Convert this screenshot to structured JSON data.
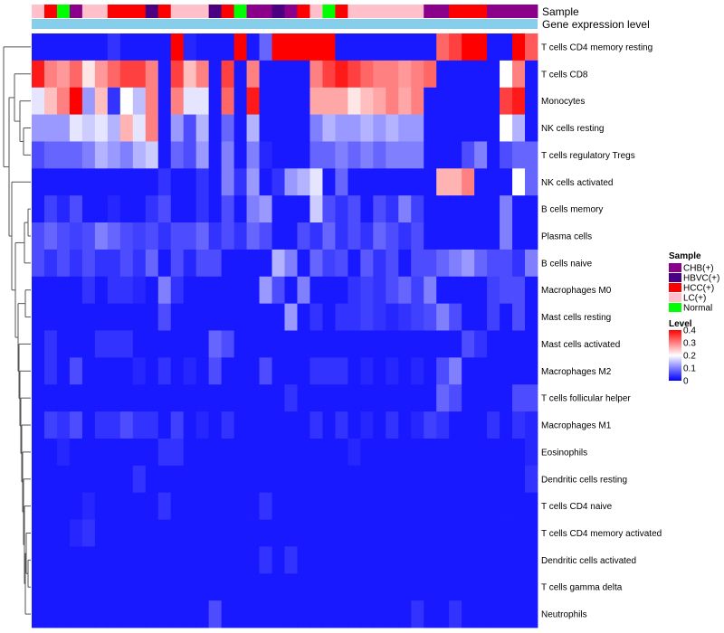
{
  "chart_data": {
    "type": "heatmap",
    "title": "",
    "annotation_tracks": [
      "Sample",
      "Gene expression level"
    ],
    "rows": [
      "T cells CD4 memory resting",
      "T cells CD8",
      "Monocytes",
      "NK cells resting",
      "T cells regulatory  Tregs",
      "NK cells activated",
      "B cells memory",
      "Plasma cells",
      "B cells naive",
      "Macrophages M0",
      "Mast cells resting",
      "Mast cells activated",
      "Macrophages M2",
      "T cells follicular helper",
      "Macrophages M1",
      "Eosinophils",
      "Dendritic cells resting",
      "T cells CD4 naive",
      "T cells CD4 memory activated",
      "Dendritic cells activated",
      "T cells gamma delta",
      "Neutrophils"
    ],
    "sample_groups": [
      "LC",
      "HCC",
      "Normal",
      "CHB",
      "LC",
      "LC",
      "HCC",
      "HCC",
      "HCC",
      "HBVC",
      "HCC",
      "LC",
      "LC",
      "LC",
      "HBVC",
      "HCC",
      "Normal",
      "CHB",
      "CHB",
      "HBVC",
      "CHB",
      "HCC",
      "LC",
      "Normal",
      "HCC",
      "LC",
      "LC",
      "LC",
      "LC",
      "LC",
      "LC",
      "CHB",
      "CHB",
      "HCC",
      "HCC",
      "HCC",
      "CHB",
      "CHB",
      "CHB",
      "CHB"
    ],
    "values": [
      [
        0.02,
        0.02,
        0.02,
        0.02,
        0.02,
        0.02,
        0.04,
        0.02,
        0.02,
        0.02,
        0.02,
        0.4,
        0.03,
        0.02,
        0.02,
        0.02,
        0.4,
        0.02,
        0.08,
        0.4,
        0.4,
        0.4,
        0.4,
        0.4,
        0.02,
        0.02,
        0.02,
        0.02,
        0.02,
        0.02,
        0.02,
        0.02,
        0.32,
        0.35,
        0.4,
        0.4,
        0.02,
        0.02,
        0.4,
        0.33
      ],
      [
        0.38,
        0.3,
        0.28,
        0.32,
        0.22,
        0.28,
        0.32,
        0.35,
        0.35,
        0.3,
        0.02,
        0.35,
        0.25,
        0.3,
        0.02,
        0.35,
        0.02,
        0.3,
        0.02,
        0.02,
        0.02,
        0.02,
        0.3,
        0.35,
        0.38,
        0.35,
        0.32,
        0.3,
        0.3,
        0.28,
        0.3,
        0.32,
        0.02,
        0.02,
        0.02,
        0.02,
        0.02,
        0.2,
        0.3,
        0.02
      ],
      [
        0.18,
        0.25,
        0.3,
        0.4,
        0.12,
        0.25,
        0.04,
        0.2,
        0.15,
        0.3,
        0.02,
        0.3,
        0.18,
        0.18,
        0.02,
        0.32,
        0.02,
        0.38,
        0.02,
        0.02,
        0.02,
        0.02,
        0.27,
        0.27,
        0.27,
        0.22,
        0.25,
        0.27,
        0.3,
        0.27,
        0.3,
        0.02,
        0.02,
        0.02,
        0.02,
        0.02,
        0.02,
        0.35,
        0.38,
        0.02
      ],
      [
        0.12,
        0.12,
        0.12,
        0.18,
        0.16,
        0.18,
        0.14,
        0.26,
        0.18,
        0.3,
        0.02,
        0.12,
        0.06,
        0.14,
        0.02,
        0.08,
        0.02,
        0.14,
        0.02,
        0.02,
        0.02,
        0.02,
        0.1,
        0.14,
        0.12,
        0.12,
        0.14,
        0.12,
        0.14,
        0.12,
        0.12,
        0.02,
        0.02,
        0.02,
        0.02,
        0.02,
        0.02,
        0.2,
        0.14,
        0.02
      ],
      [
        0.06,
        0.08,
        0.08,
        0.08,
        0.1,
        0.14,
        0.12,
        0.1,
        0.14,
        0.16,
        0.02,
        0.08,
        0.06,
        0.12,
        0.02,
        0.1,
        0.02,
        0.1,
        0.03,
        0.02,
        0.02,
        0.02,
        0.08,
        0.08,
        0.1,
        0.08,
        0.1,
        0.08,
        0.1,
        0.1,
        0.1,
        0.02,
        0.02,
        0.02,
        0.06,
        0.1,
        0.02,
        0.06,
        0.08,
        0.08
      ],
      [
        0.02,
        0.02,
        0.02,
        0.02,
        0.02,
        0.02,
        0.02,
        0.02,
        0.02,
        0.02,
        0.04,
        0.02,
        0.02,
        0.04,
        0.02,
        0.1,
        0.04,
        0.12,
        0.02,
        0.04,
        0.12,
        0.14,
        0.18,
        0.02,
        0.08,
        0.02,
        0.02,
        0.02,
        0.02,
        0.02,
        0.02,
        0.02,
        0.26,
        0.26,
        0.3,
        0.02,
        0.02,
        0.02,
        0.2,
        0.08
      ],
      [
        0.02,
        0.05,
        0.03,
        0.06,
        0.02,
        0.02,
        0.03,
        0.02,
        0.02,
        0.04,
        0.06,
        0.02,
        0.02,
        0.04,
        0.02,
        0.06,
        0.02,
        0.1,
        0.12,
        0.02,
        0.02,
        0.02,
        0.16,
        0.06,
        0.04,
        0.06,
        0.02,
        0.06,
        0.04,
        0.1,
        0.05,
        0.02,
        0.02,
        0.02,
        0.02,
        0.02,
        0.02,
        0.1,
        0.02,
        0.02
      ],
      [
        0.06,
        0.08,
        0.06,
        0.05,
        0.06,
        0.1,
        0.08,
        0.06,
        0.05,
        0.06,
        0.04,
        0.06,
        0.06,
        0.08,
        0.04,
        0.06,
        0.04,
        0.08,
        0.06,
        0.02,
        0.02,
        0.06,
        0.04,
        0.08,
        0.04,
        0.06,
        0.04,
        0.08,
        0.06,
        0.04,
        0.06,
        0.02,
        0.02,
        0.02,
        0.02,
        0.02,
        0.02,
        0.1,
        0.02,
        0.02
      ],
      [
        0.06,
        0.04,
        0.06,
        0.04,
        0.06,
        0.04,
        0.04,
        0.06,
        0.04,
        0.08,
        0.02,
        0.06,
        0.03,
        0.06,
        0.06,
        0.02,
        0.02,
        0.02,
        0.02,
        0.14,
        0.1,
        0.02,
        0.08,
        0.05,
        0.06,
        0.02,
        0.07,
        0.04,
        0.06,
        0.02,
        0.06,
        0.06,
        0.08,
        0.1,
        0.12,
        0.08,
        0.06,
        0.06,
        0.04,
        0.1
      ],
      [
        0.02,
        0.02,
        0.02,
        0.02,
        0.04,
        0.02,
        0.04,
        0.04,
        0.03,
        0.02,
        0.1,
        0.04,
        0.02,
        0.02,
        0.02,
        0.02,
        0.02,
        0.02,
        0.12,
        0.06,
        0.02,
        0.1,
        0.02,
        0.02,
        0.02,
        0.04,
        0.05,
        0.04,
        0.06,
        0.08,
        0.05,
        0.1,
        0.02,
        0.02,
        0.02,
        0.02,
        0.05,
        0.06,
        0.06,
        0.02
      ],
      [
        0.02,
        0.02,
        0.02,
        0.02,
        0.02,
        0.02,
        0.02,
        0.02,
        0.02,
        0.02,
        0.06,
        0.02,
        0.02,
        0.02,
        0.02,
        0.02,
        0.02,
        0.02,
        0.02,
        0.02,
        0.12,
        0.02,
        0.04,
        0.02,
        0.04,
        0.04,
        0.05,
        0.04,
        0.03,
        0.04,
        0.05,
        0.06,
        0.1,
        0.06,
        0.02,
        0.02,
        0.05,
        0.02,
        0.06,
        0.02
      ],
      [
        0.02,
        0.04,
        0.02,
        0.02,
        0.02,
        0.04,
        0.04,
        0.04,
        0.02,
        0.02,
        0.02,
        0.02,
        0.02,
        0.02,
        0.08,
        0.06,
        0.02,
        0.02,
        0.02,
        0.02,
        0.02,
        0.02,
        0.02,
        0.02,
        0.02,
        0.02,
        0.02,
        0.02,
        0.02,
        0.02,
        0.02,
        0.02,
        0.02,
        0.02,
        0.06,
        0.04,
        0.02,
        0.02,
        0.02,
        0.02
      ],
      [
        0.02,
        0.04,
        0.02,
        0.06,
        0.02,
        0.02,
        0.02,
        0.02,
        0.03,
        0.02,
        0.04,
        0.02,
        0.03,
        0.02,
        0.06,
        0.02,
        0.02,
        0.02,
        0.06,
        0.02,
        0.02,
        0.02,
        0.04,
        0.04,
        0.04,
        0.02,
        0.03,
        0.02,
        0.03,
        0.02,
        0.03,
        0.02,
        0.06,
        0.1,
        0.02,
        0.02,
        0.02,
        0.02,
        0.02,
        0.02
      ],
      [
        0.02,
        0.02,
        0.02,
        0.02,
        0.02,
        0.02,
        0.02,
        0.02,
        0.02,
        0.02,
        0.02,
        0.02,
        0.02,
        0.02,
        0.02,
        0.02,
        0.02,
        0.02,
        0.02,
        0.02,
        0.04,
        0.02,
        0.02,
        0.02,
        0.02,
        0.02,
        0.02,
        0.02,
        0.02,
        0.02,
        0.02,
        0.02,
        0.08,
        0.06,
        0.02,
        0.02,
        0.02,
        0.02,
        0.06,
        0.06
      ],
      [
        0.02,
        0.05,
        0.04,
        0.06,
        0.02,
        0.04,
        0.04,
        0.06,
        0.04,
        0.04,
        0.02,
        0.05,
        0.02,
        0.03,
        0.02,
        0.04,
        0.02,
        0.02,
        0.02,
        0.02,
        0.02,
        0.02,
        0.04,
        0.02,
        0.04,
        0.02,
        0.03,
        0.02,
        0.04,
        0.02,
        0.03,
        0.05,
        0.04,
        0.02,
        0.02,
        0.02,
        0.04,
        0.02,
        0.04,
        0.03
      ],
      [
        0.02,
        0.02,
        0.03,
        0.02,
        0.02,
        0.02,
        0.02,
        0.02,
        0.02,
        0.02,
        0.04,
        0.04,
        0.02,
        0.02,
        0.02,
        0.02,
        0.02,
        0.02,
        0.02,
        0.02,
        0.02,
        0.02,
        0.02,
        0.02,
        0.02,
        0.03,
        0.02,
        0.02,
        0.02,
        0.02,
        0.02,
        0.02,
        0.02,
        0.02,
        0.02,
        0.02,
        0.02,
        0.02,
        0.02,
        0.03
      ],
      [
        0.02,
        0.02,
        0.02,
        0.02,
        0.02,
        0.02,
        0.02,
        0.02,
        0.04,
        0.02,
        0.02,
        0.02,
        0.02,
        0.02,
        0.02,
        0.02,
        0.02,
        0.02,
        0.02,
        0.02,
        0.02,
        0.02,
        0.02,
        0.02,
        0.02,
        0.02,
        0.02,
        0.02,
        0.02,
        0.02,
        0.02,
        0.02,
        0.02,
        0.02,
        0.02,
        0.02,
        0.02,
        0.02,
        0.02,
        0.04
      ],
      [
        0.02,
        0.02,
        0.02,
        0.02,
        0.03,
        0.02,
        0.02,
        0.02,
        0.02,
        0.02,
        0.04,
        0.02,
        0.02,
        0.02,
        0.02,
        0.02,
        0.02,
        0.02,
        0.04,
        0.02,
        0.02,
        0.02,
        0.02,
        0.02,
        0.02,
        0.02,
        0.02,
        0.02,
        0.02,
        0.02,
        0.02,
        0.02,
        0.02,
        0.02,
        0.02,
        0.02,
        0.02,
        0.02,
        0.02,
        0.02
      ],
      [
        0.02,
        0.02,
        0.02,
        0.03,
        0.04,
        0.02,
        0.02,
        0.02,
        0.02,
        0.02,
        0.02,
        0.02,
        0.02,
        0.02,
        0.02,
        0.02,
        0.02,
        0.02,
        0.02,
        0.02,
        0.02,
        0.02,
        0.02,
        0.02,
        0.02,
        0.02,
        0.02,
        0.02,
        0.02,
        0.02,
        0.02,
        0.02,
        0.02,
        0.02,
        0.02,
        0.02,
        0.02,
        0.02,
        0.02,
        0.02
      ],
      [
        0.02,
        0.02,
        0.02,
        0.02,
        0.02,
        0.02,
        0.02,
        0.02,
        0.02,
        0.02,
        0.02,
        0.02,
        0.02,
        0.02,
        0.02,
        0.02,
        0.02,
        0.02,
        0.04,
        0.02,
        0.04,
        0.02,
        0.02,
        0.02,
        0.02,
        0.02,
        0.02,
        0.02,
        0.02,
        0.02,
        0.02,
        0.02,
        0.02,
        0.02,
        0.02,
        0.02,
        0.02,
        0.02,
        0.02,
        0.02
      ],
      [
        0.02,
        0.02,
        0.02,
        0.02,
        0.02,
        0.02,
        0.02,
        0.02,
        0.02,
        0.02,
        0.02,
        0.02,
        0.02,
        0.02,
        0.02,
        0.02,
        0.02,
        0.02,
        0.02,
        0.02,
        0.02,
        0.02,
        0.02,
        0.02,
        0.02,
        0.02,
        0.02,
        0.02,
        0.02,
        0.02,
        0.02,
        0.02,
        0.02,
        0.02,
        0.02,
        0.02,
        0.02,
        0.02,
        0.02,
        0.02
      ],
      [
        0.02,
        0.02,
        0.02,
        0.02,
        0.02,
        0.02,
        0.02,
        0.02,
        0.02,
        0.02,
        0.02,
        0.02,
        0.02,
        0.02,
        0.06,
        0.02,
        0.02,
        0.02,
        0.02,
        0.02,
        0.02,
        0.02,
        0.02,
        0.02,
        0.02,
        0.02,
        0.02,
        0.02,
        0.02,
        0.02,
        0.04,
        0.02,
        0.02,
        0.04,
        0.02,
        0.02,
        0.02,
        0.02,
        0.02,
        0.02
      ]
    ],
    "colorscale": {
      "title": "Level",
      "ticks": [
        0.4,
        0.3,
        0.2,
        0.1,
        0
      ],
      "min": 0,
      "mid": 0.2,
      "max": 0.4,
      "low_color": "#0000ff",
      "mid_color": "#ffffff",
      "high_color": "#ff0000"
    },
    "legend": {
      "title": "Sample",
      "entries": [
        {
          "key": "CHB",
          "label": "CHB(+)",
          "color": "#8b008b"
        },
        {
          "key": "HBVC",
          "label": "HBVC(+)",
          "color": "#4b0082"
        },
        {
          "key": "HCC",
          "label": "HCC(+)",
          "color": "#ff0000"
        },
        {
          "key": "LC",
          "label": "LC(+)",
          "color": "#ffc0cb"
        },
        {
          "key": "Normal",
          "label": "Normal",
          "color": "#00ff00"
        }
      ]
    },
    "expression_track_color": "#87ceeb",
    "dendrogram": "row clustering"
  }
}
